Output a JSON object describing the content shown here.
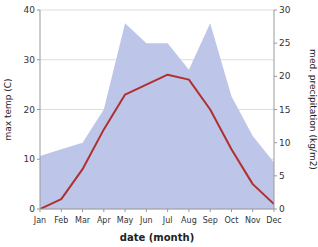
{
  "chart_data": {
    "type": "line",
    "categories": [
      "Jan",
      "Feb",
      "Mar",
      "Apr",
      "May",
      "Jun",
      "Jul",
      "Aug",
      "Sep",
      "Oct",
      "Nov",
      "Dec"
    ],
    "series": [
      {
        "type": "area",
        "color": "#bdc5e8",
        "axis": "y2",
        "values": [
          8,
          9,
          10,
          15,
          28,
          25,
          25,
          21,
          28,
          17,
          11,
          7
        ]
      },
      {
        "type": "line",
        "color": "#b03030",
        "values": [
          0,
          2,
          8,
          16,
          23,
          25,
          27,
          26,
          20,
          12,
          5,
          1
        ]
      }
    ],
    "xlabel": "date (month)",
    "ylabel": "max temp (C)",
    "y2label": "med. precipitation (kg/m2)",
    "ylim": [
      0,
      40
    ],
    "yticks": [
      0,
      10,
      20,
      30,
      40
    ],
    "y2lim": [
      0,
      30
    ],
    "y2ticks": [
      0,
      5,
      10,
      15,
      20,
      25,
      30
    ],
    "grid": true
  }
}
